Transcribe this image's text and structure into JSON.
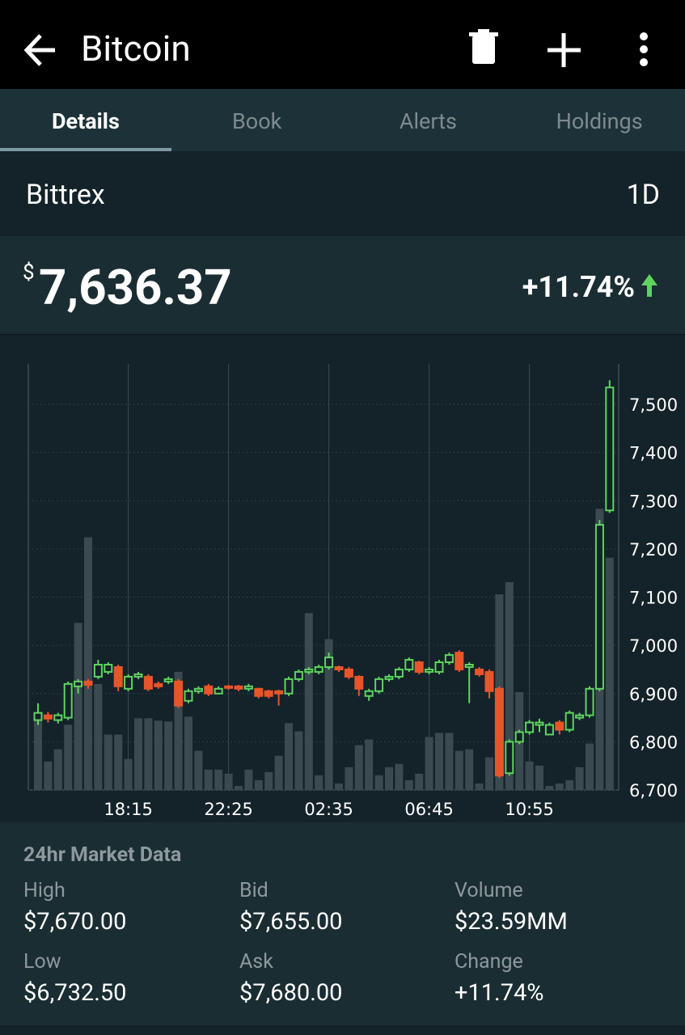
{
  "app_bar": {
    "title": "Bitcoin"
  },
  "tabs": [
    "Details",
    "Book",
    "Alerts",
    "Holdings"
  ],
  "exchange": {
    "name": "Bittrex",
    "period": "1D"
  },
  "price": {
    "currency": "$",
    "value": "7,636.37",
    "change": "+11.74%"
  },
  "chart_data": {
    "type": "candlestick",
    "categories": [
      null,
      null,
      null,
      null,
      null,
      null,
      null,
      null,
      null,
      "18:15",
      null,
      null,
      null,
      null,
      null,
      null,
      null,
      null,
      null,
      "22:25",
      null,
      null,
      null,
      null,
      null,
      null,
      null,
      null,
      null,
      "02:35",
      null,
      null,
      null,
      null,
      null,
      null,
      null,
      null,
      null,
      "06:45",
      null,
      null,
      null,
      null,
      null,
      null,
      null,
      null,
      null,
      "10:55",
      null,
      null,
      null,
      null,
      null,
      null,
      null,
      null
    ],
    "open": [
      6845,
      6855,
      6845,
      6850,
      6915,
      6925,
      6935,
      6945,
      6955,
      6910,
      6935,
      6935,
      6920,
      6925,
      6925,
      6885,
      6905,
      6915,
      6900,
      6915,
      6915,
      6910,
      6910,
      6905,
      6905,
      6900,
      6930,
      6945,
      6945,
      6955,
      6955,
      6950,
      6935,
      6895,
      6905,
      6930,
      6935,
      6950,
      6965,
      6945,
      6945,
      6965,
      6985,
      6955,
      6950,
      6945,
      6910,
      6735,
      6800,
      6820,
      6835,
      6815,
      6840,
      6825,
      6850,
      6855,
      6910,
      7280
    ],
    "high": [
      6880,
      6862,
      6860,
      6925,
      6930,
      6930,
      6970,
      6965,
      6960,
      6940,
      6945,
      6940,
      6925,
      6935,
      6930,
      6910,
      6915,
      6920,
      6915,
      6918,
      6918,
      6920,
      6912,
      6908,
      6908,
      6935,
      6950,
      6955,
      6960,
      6985,
      6958,
      6955,
      6938,
      6910,
      6935,
      6940,
      6955,
      6975,
      6968,
      6955,
      6970,
      6985,
      6990,
      6965,
      6955,
      6950,
      6915,
      6805,
      6825,
      6845,
      6848,
      6840,
      6845,
      6865,
      6860,
      6915,
      7260,
      7550
    ],
    "low": [
      6835,
      6840,
      6838,
      6845,
      6900,
      6910,
      6930,
      6940,
      6905,
      6905,
      6930,
      6905,
      6910,
      6920,
      6870,
      6880,
      6900,
      6895,
      6905,
      6908,
      6905,
      6905,
      6890,
      6890,
      6875,
      6895,
      6925,
      6940,
      6940,
      6950,
      6945,
      6930,
      6895,
      6885,
      6900,
      6925,
      6930,
      6945,
      6940,
      6940,
      6940,
      6960,
      6945,
      6880,
      6935,
      6890,
      6725,
      6730,
      6795,
      6815,
      6820,
      6815,
      6815,
      6820,
      6845,
      6850,
      6905,
      7275
    ],
    "close": [
      6860,
      6848,
      6855,
      6920,
      6925,
      6918,
      6960,
      6960,
      6915,
      6935,
      6940,
      6910,
      6915,
      6930,
      6875,
      6905,
      6910,
      6900,
      6910,
      6912,
      6910,
      6915,
      6895,
      6895,
      6900,
      6930,
      6945,
      6950,
      6955,
      6975,
      6950,
      6935,
      6910,
      6905,
      6930,
      6935,
      6950,
      6970,
      6945,
      6950,
      6965,
      6980,
      6950,
      6960,
      6940,
      6905,
      6730,
      6800,
      6820,
      6840,
      6840,
      6835,
      6825,
      6860,
      6855,
      6910,
      7250,
      7535
    ],
    "volume": [
      90,
      35,
      50,
      80,
      205,
      310,
      130,
      68,
      68,
      38,
      88,
      88,
      85,
      84,
      145,
      90,
      48,
      25,
      25,
      20,
      5,
      25,
      12,
      22,
      42,
      82,
      72,
      217,
      18,
      185,
      8,
      28,
      55,
      62,
      18,
      28,
      32,
      12,
      20,
      65,
      70,
      70,
      48,
      50,
      8,
      40,
      240,
      255,
      120,
      35,
      30,
      5,
      8,
      12,
      28,
      57,
      345,
      285
    ],
    "up_color": "#5fd35f",
    "down_color": "#e8552a",
    "volume_color": "#3a4a50",
    "ylim": [
      6700,
      7584
    ],
    "yticks": [
      {
        "value": 6700,
        "label": "6,700"
      },
      {
        "value": 6800,
        "label": "6,800"
      },
      {
        "value": 6900,
        "label": "6,900"
      },
      {
        "value": 7000,
        "label": "7,000"
      },
      {
        "value": 7100,
        "label": "7,100"
      },
      {
        "value": 7200,
        "label": "7,200"
      },
      {
        "value": 7300,
        "label": "7,300"
      },
      {
        "value": 7400,
        "label": "7,400"
      },
      {
        "value": 7500,
        "label": "7,500"
      }
    ],
    "grid": true
  },
  "market": {
    "title": "24hr Market Data",
    "items": [
      {
        "label": "High",
        "value": "$7,670.00"
      },
      {
        "label": "Bid",
        "value": "$7,655.00"
      },
      {
        "label": "Volume",
        "value": "$23.59MM"
      },
      {
        "label": "Low",
        "value": "$6,732.50"
      },
      {
        "label": "Ask",
        "value": "$7,680.00"
      },
      {
        "label": "Change",
        "value": "+11.74%"
      }
    ]
  }
}
